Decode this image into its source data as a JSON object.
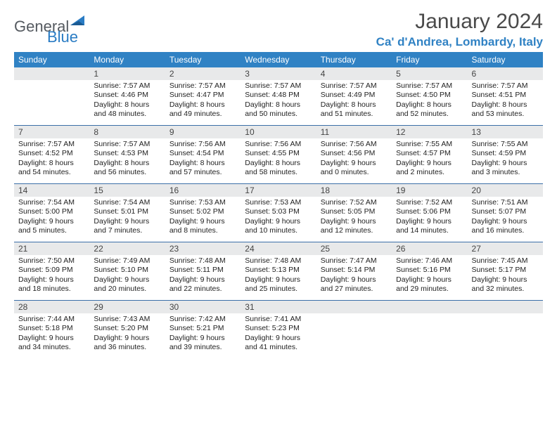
{
  "logo": {
    "word1": "General",
    "word2": "Blue"
  },
  "title": "January 2024",
  "location": "Ca' d'Andrea, Lombardy, Italy",
  "day_headers": [
    "Sunday",
    "Monday",
    "Tuesday",
    "Wednesday",
    "Thursday",
    "Friday",
    "Saturday"
  ],
  "colors": {
    "header_bg": "#3082c4",
    "header_text": "#ffffff",
    "daynum_bg": "#e8e9ea",
    "rule": "#3c6fa8",
    "title_text": "#4a4a4a",
    "location_text": "#3082c4",
    "logo_gray": "#555a60",
    "logo_blue": "#2a7cc4"
  },
  "weeks": [
    [
      {
        "num": "",
        "text": ""
      },
      {
        "num": "1",
        "text": "Sunrise: 7:57 AM\nSunset: 4:46 PM\nDaylight: 8 hours and 48 minutes."
      },
      {
        "num": "2",
        "text": "Sunrise: 7:57 AM\nSunset: 4:47 PM\nDaylight: 8 hours and 49 minutes."
      },
      {
        "num": "3",
        "text": "Sunrise: 7:57 AM\nSunset: 4:48 PM\nDaylight: 8 hours and 50 minutes."
      },
      {
        "num": "4",
        "text": "Sunrise: 7:57 AM\nSunset: 4:49 PM\nDaylight: 8 hours and 51 minutes."
      },
      {
        "num": "5",
        "text": "Sunrise: 7:57 AM\nSunset: 4:50 PM\nDaylight: 8 hours and 52 minutes."
      },
      {
        "num": "6",
        "text": "Sunrise: 7:57 AM\nSunset: 4:51 PM\nDaylight: 8 hours and 53 minutes."
      }
    ],
    [
      {
        "num": "7",
        "text": "Sunrise: 7:57 AM\nSunset: 4:52 PM\nDaylight: 8 hours and 54 minutes."
      },
      {
        "num": "8",
        "text": "Sunrise: 7:57 AM\nSunset: 4:53 PM\nDaylight: 8 hours and 56 minutes."
      },
      {
        "num": "9",
        "text": "Sunrise: 7:56 AM\nSunset: 4:54 PM\nDaylight: 8 hours and 57 minutes."
      },
      {
        "num": "10",
        "text": "Sunrise: 7:56 AM\nSunset: 4:55 PM\nDaylight: 8 hours and 58 minutes."
      },
      {
        "num": "11",
        "text": "Sunrise: 7:56 AM\nSunset: 4:56 PM\nDaylight: 9 hours and 0 minutes."
      },
      {
        "num": "12",
        "text": "Sunrise: 7:55 AM\nSunset: 4:57 PM\nDaylight: 9 hours and 2 minutes."
      },
      {
        "num": "13",
        "text": "Sunrise: 7:55 AM\nSunset: 4:59 PM\nDaylight: 9 hours and 3 minutes."
      }
    ],
    [
      {
        "num": "14",
        "text": "Sunrise: 7:54 AM\nSunset: 5:00 PM\nDaylight: 9 hours and 5 minutes."
      },
      {
        "num": "15",
        "text": "Sunrise: 7:54 AM\nSunset: 5:01 PM\nDaylight: 9 hours and 7 minutes."
      },
      {
        "num": "16",
        "text": "Sunrise: 7:53 AM\nSunset: 5:02 PM\nDaylight: 9 hours and 8 minutes."
      },
      {
        "num": "17",
        "text": "Sunrise: 7:53 AM\nSunset: 5:03 PM\nDaylight: 9 hours and 10 minutes."
      },
      {
        "num": "18",
        "text": "Sunrise: 7:52 AM\nSunset: 5:05 PM\nDaylight: 9 hours and 12 minutes."
      },
      {
        "num": "19",
        "text": "Sunrise: 7:52 AM\nSunset: 5:06 PM\nDaylight: 9 hours and 14 minutes."
      },
      {
        "num": "20",
        "text": "Sunrise: 7:51 AM\nSunset: 5:07 PM\nDaylight: 9 hours and 16 minutes."
      }
    ],
    [
      {
        "num": "21",
        "text": "Sunrise: 7:50 AM\nSunset: 5:09 PM\nDaylight: 9 hours and 18 minutes."
      },
      {
        "num": "22",
        "text": "Sunrise: 7:49 AM\nSunset: 5:10 PM\nDaylight: 9 hours and 20 minutes."
      },
      {
        "num": "23",
        "text": "Sunrise: 7:48 AM\nSunset: 5:11 PM\nDaylight: 9 hours and 22 minutes."
      },
      {
        "num": "24",
        "text": "Sunrise: 7:48 AM\nSunset: 5:13 PM\nDaylight: 9 hours and 25 minutes."
      },
      {
        "num": "25",
        "text": "Sunrise: 7:47 AM\nSunset: 5:14 PM\nDaylight: 9 hours and 27 minutes."
      },
      {
        "num": "26",
        "text": "Sunrise: 7:46 AM\nSunset: 5:16 PM\nDaylight: 9 hours and 29 minutes."
      },
      {
        "num": "27",
        "text": "Sunrise: 7:45 AM\nSunset: 5:17 PM\nDaylight: 9 hours and 32 minutes."
      }
    ],
    [
      {
        "num": "28",
        "text": "Sunrise: 7:44 AM\nSunset: 5:18 PM\nDaylight: 9 hours and 34 minutes."
      },
      {
        "num": "29",
        "text": "Sunrise: 7:43 AM\nSunset: 5:20 PM\nDaylight: 9 hours and 36 minutes."
      },
      {
        "num": "30",
        "text": "Sunrise: 7:42 AM\nSunset: 5:21 PM\nDaylight: 9 hours and 39 minutes."
      },
      {
        "num": "31",
        "text": "Sunrise: 7:41 AM\nSunset: 5:23 PM\nDaylight: 9 hours and 41 minutes."
      },
      {
        "num": "",
        "text": ""
      },
      {
        "num": "",
        "text": ""
      },
      {
        "num": "",
        "text": ""
      }
    ]
  ]
}
